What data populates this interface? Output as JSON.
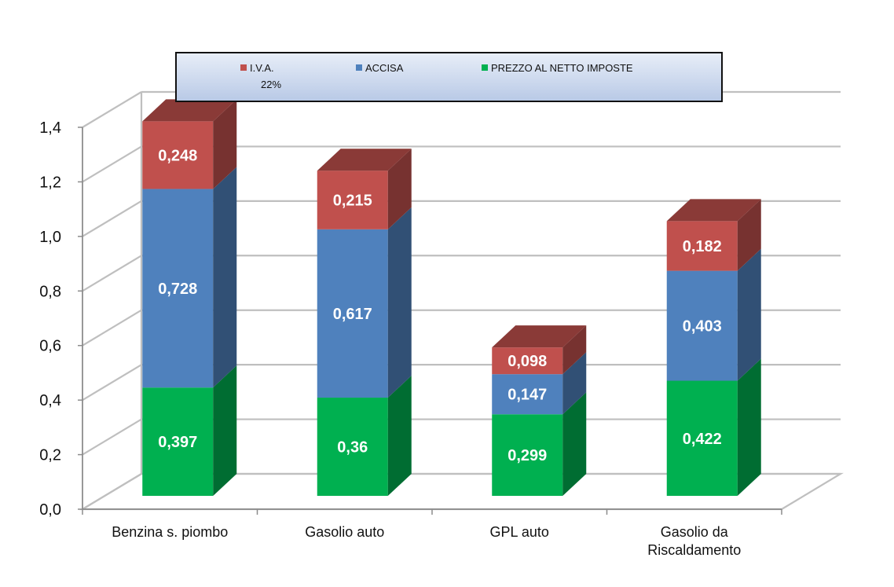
{
  "chart_data": {
    "type": "bar",
    "stacked": true,
    "three_d": true,
    "categories": [
      [
        "Benzina s. piombo"
      ],
      [
        "Gasolio auto"
      ],
      [
        "GPL auto"
      ],
      [
        "Gasolio da",
        "Riscaldamento"
      ]
    ],
    "series": [
      {
        "name": "PREZZO AL NETTO IMPOSTE",
        "color": "#00b050",
        "values": [
          0.397,
          0.36,
          0.299,
          0.422
        ],
        "labels": [
          "0,397",
          "0,36",
          "0,299",
          "0,422"
        ]
      },
      {
        "name": "ACCISA",
        "color": "#4f81bd",
        "values": [
          0.728,
          0.617,
          0.147,
          0.403
        ],
        "labels": [
          "0,728",
          "0,617",
          "0,147",
          "0,403"
        ]
      },
      {
        "name": "I.V.A.",
        "name_line2": "22%",
        "color": "#c0504d",
        "values": [
          0.248,
          0.215,
          0.098,
          0.182
        ],
        "labels": [
          "0,248",
          "0,215",
          "0,098",
          "0,182"
        ]
      }
    ],
    "legend_order": [
      2,
      1,
      0
    ],
    "y_ticks": [
      "0,0",
      "0,2",
      "0,4",
      "0,6",
      "0,8",
      "1,0",
      "1,2",
      "1,4"
    ],
    "ylim": [
      0,
      1.4
    ],
    "grid": true,
    "legend_position": "top",
    "title": "",
    "xlabel": "",
    "ylabel": ""
  }
}
